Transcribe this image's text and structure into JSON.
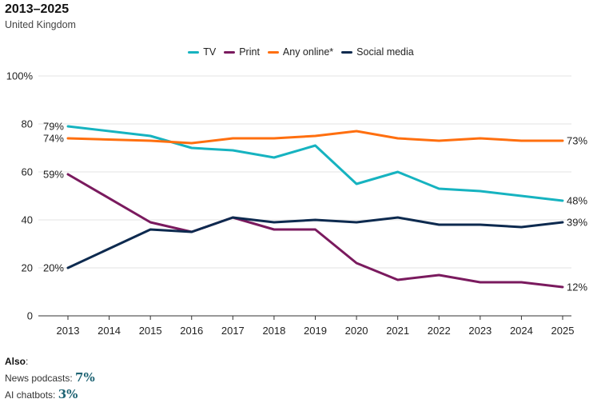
{
  "header": {
    "title": "2013–2025",
    "subtitle": "United Kingdom"
  },
  "also": {
    "heading": "Also",
    "colon": ":",
    "items": [
      {
        "label": "News podcasts: ",
        "value": "7%"
      },
      {
        "label": "AI chatbots: ",
        "value": "3%"
      }
    ]
  },
  "chart_data": {
    "type": "line",
    "title": "2013–2025",
    "subtitle": "United Kingdom",
    "xlabel": "",
    "ylabel": "",
    "x": [
      "2013",
      "2014",
      "2015",
      "2016",
      "2017",
      "2018",
      "2019",
      "2020",
      "2021",
      "2022",
      "2023",
      "2024",
      "2025"
    ],
    "ylim": [
      0,
      100
    ],
    "yticks": [
      0,
      20,
      40,
      60,
      80,
      100
    ],
    "ytick_labels": [
      "0",
      "20",
      "40",
      "60",
      "80",
      "100%"
    ],
    "grid": true,
    "legend_position": "top-center",
    "series": [
      {
        "name": "TV",
        "color": "#16b3c0",
        "values": [
          79,
          null,
          75,
          70,
          69,
          66,
          71,
          55,
          60,
          53,
          52,
          50,
          48
        ],
        "start_label": "79%",
        "end_label": "48%"
      },
      {
        "name": "Print",
        "color": "#7a1a5e",
        "values": [
          59,
          null,
          39,
          35,
          41,
          36,
          36,
          22,
          15,
          17,
          14,
          14,
          12
        ],
        "start_label": "59%",
        "end_label": "12%"
      },
      {
        "name": "Any online*",
        "color": "#ff6f0f",
        "values": [
          74,
          null,
          73,
          72,
          74,
          74,
          75,
          77,
          74,
          73,
          74,
          73,
          73
        ],
        "start_label": "74%",
        "end_label": "73%"
      },
      {
        "name": "Social media",
        "color": "#0d2a4f",
        "values": [
          20,
          null,
          36,
          35,
          41,
          39,
          40,
          39,
          41,
          38,
          38,
          37,
          39
        ],
        "start_label": "20%",
        "end_label": "39%"
      }
    ]
  }
}
